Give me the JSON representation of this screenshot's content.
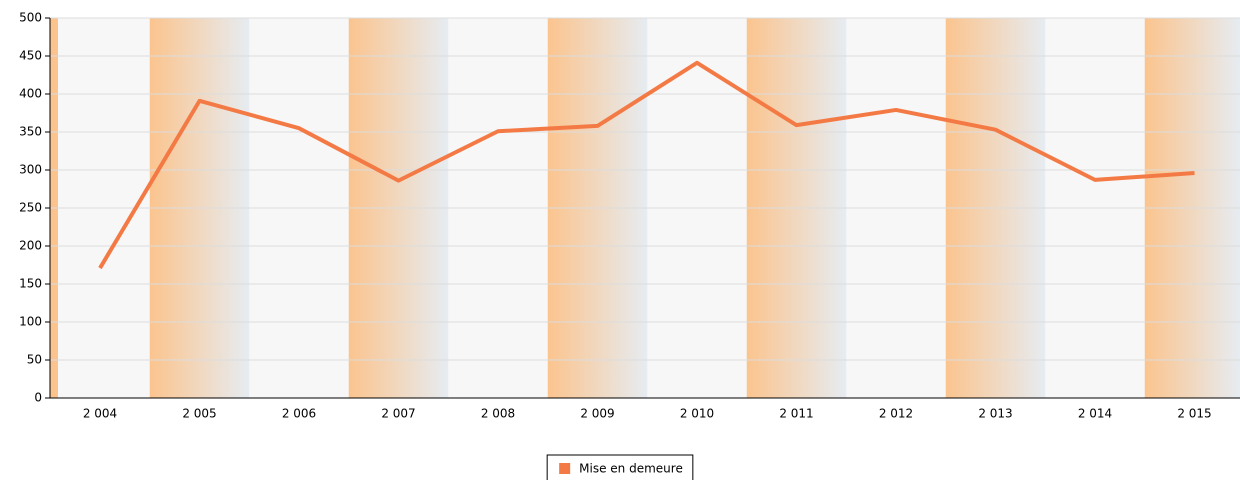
{
  "chart_data": {
    "type": "line",
    "categories": [
      "2 004",
      "2 005",
      "2 006",
      "2 007",
      "2 008",
      "2 009",
      "2 010",
      "2 011",
      "2 012",
      "2 013",
      "2 014",
      "2 015"
    ],
    "series": [
      {
        "name": "Mise en demeure",
        "color": "#f47a45",
        "values": [
          171,
          391,
          355,
          286,
          351,
          358,
          441,
          359,
          379,
          353,
          287,
          296
        ]
      }
    ],
    "ylim": [
      0,
      500
    ],
    "yticks": [
      0,
      50,
      100,
      150,
      200,
      250,
      300,
      350,
      400,
      450,
      500
    ],
    "grid": true,
    "legend": "bottom"
  }
}
